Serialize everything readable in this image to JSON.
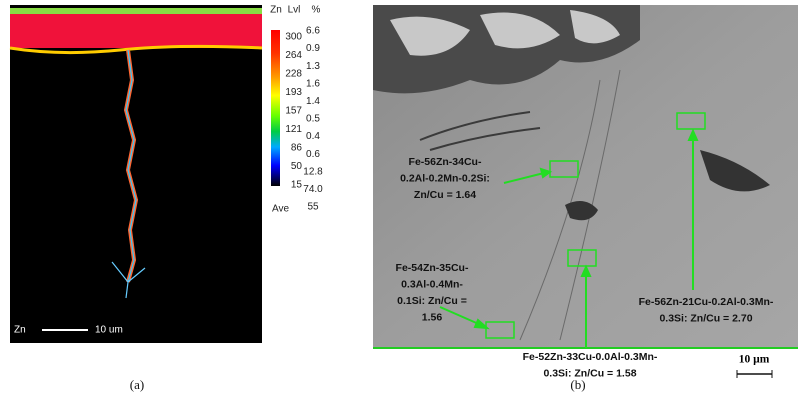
{
  "panel_a": {
    "legend_headers": [
      "Zn",
      "Lvl",
      "%"
    ],
    "levels": [
      "300",
      "264",
      "228",
      "193",
      "157",
      "121",
      "86",
      "50",
      "15"
    ],
    "percents": [
      "6.6",
      "0.9",
      "1.3",
      "1.6",
      "1.4",
      "0.5",
      "0.4",
      "0.6",
      "12.8",
      "74.0"
    ],
    "ave_label": "Ave",
    "ave_value": "55",
    "map_label": "Zn",
    "scale_label": "10 um",
    "caption": "(a)"
  },
  "panel_b": {
    "annotations": [
      {
        "lines": [
          "Fe-56Zn-34Cu-",
          "0.2Al-0.2Mn-0.2Si:",
          "Zn/Cu = 1.64"
        ]
      },
      {
        "lines": [
          "Fe-54Zn-35Cu-",
          "0.3Al-0.4Mn-",
          "0.1Si: Zn/Cu =",
          "1.56"
        ]
      },
      {
        "lines": [
          "Fe-56Zn-21Cu-0.2Al-0.3Mn-",
          "0.3Si: Zn/Cu = 2.70"
        ]
      },
      {
        "lines": [
          "Fe-52Zn-33Cu-0.0Al-0.3Mn-",
          "0.3Si: Zn/Cu = 1.58"
        ]
      }
    ],
    "scale_label": "10 µm",
    "caption": "(b)"
  }
}
